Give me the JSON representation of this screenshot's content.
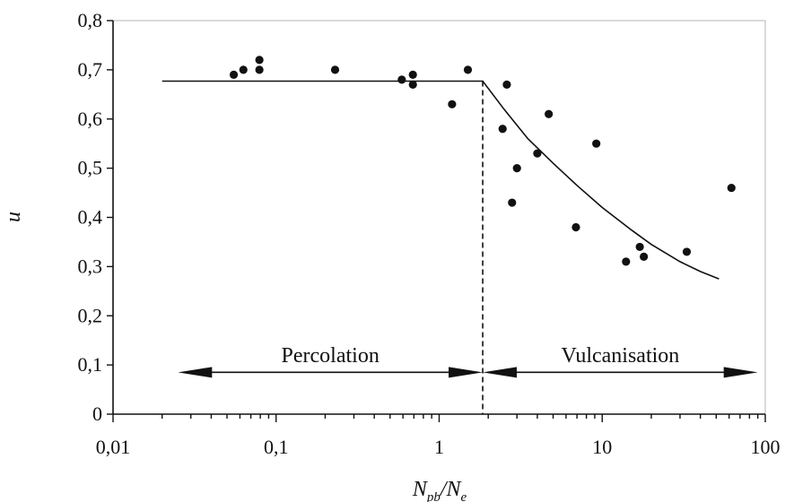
{
  "chart_data": {
    "type": "scatter",
    "title": "",
    "xlabel": "N",
    "xlabel_sub_1": "pb",
    "xlabel_sep": "/N",
    "xlabel_sub_2": "e",
    "ylabel": "u",
    "x_scale": "log",
    "xlim": [
      0.01,
      100
    ],
    "ylim": [
      0,
      0.8
    ],
    "x_ticks": [
      0.01,
      0.1,
      1,
      10,
      100
    ],
    "x_tick_labels": [
      "0,01",
      "0,1",
      "1",
      "10",
      "100"
    ],
    "y_ticks": [
      0,
      0.1,
      0.2,
      0.3,
      0.4,
      0.5,
      0.6,
      0.7,
      0.8
    ],
    "y_tick_labels": [
      "0",
      "0,1",
      "0,2",
      "0,3",
      "0,4",
      "0,5",
      "0,6",
      "0,7",
      "0,8"
    ],
    "grid": false,
    "legend": "none",
    "points": [
      {
        "x": 0.055,
        "y": 0.69
      },
      {
        "x": 0.063,
        "y": 0.7
      },
      {
        "x": 0.079,
        "y": 0.72
      },
      {
        "x": 0.079,
        "y": 0.7
      },
      {
        "x": 0.23,
        "y": 0.7
      },
      {
        "x": 0.59,
        "y": 0.68
      },
      {
        "x": 0.69,
        "y": 0.69
      },
      {
        "x": 0.69,
        "y": 0.67
      },
      {
        "x": 1.2,
        "y": 0.63
      },
      {
        "x": 1.5,
        "y": 0.7
      },
      {
        "x": 2.45,
        "y": 0.58
      },
      {
        "x": 2.6,
        "y": 0.67
      },
      {
        "x": 2.8,
        "y": 0.43
      },
      {
        "x": 3.0,
        "y": 0.5
      },
      {
        "x": 4.0,
        "y": 0.53
      },
      {
        "x": 4.7,
        "y": 0.61
      },
      {
        "x": 6.9,
        "y": 0.38
      },
      {
        "x": 9.2,
        "y": 0.55
      },
      {
        "x": 14.0,
        "y": 0.31
      },
      {
        "x": 17.0,
        "y": 0.34
      },
      {
        "x": 18.0,
        "y": 0.32
      },
      {
        "x": 33.0,
        "y": 0.33
      },
      {
        "x": 62.0,
        "y": 0.46
      }
    ],
    "fit_line": [
      {
        "x": 0.02,
        "y": 0.677
      },
      {
        "x": 1.85,
        "y": 0.677
      },
      {
        "x": 2.5,
        "y": 0.62
      },
      {
        "x": 3.5,
        "y": 0.56
      },
      {
        "x": 5.0,
        "y": 0.51
      },
      {
        "x": 7.0,
        "y": 0.465
      },
      {
        "x": 10.0,
        "y": 0.42
      },
      {
        "x": 15.0,
        "y": 0.375
      },
      {
        "x": 20.0,
        "y": 0.345
      },
      {
        "x": 30.0,
        "y": 0.31
      },
      {
        "x": 40.0,
        "y": 0.29
      },
      {
        "x": 52.0,
        "y": 0.275
      }
    ],
    "boundary_x": 1.85,
    "regions": [
      {
        "label": "Percolation",
        "x_from": 0.025,
        "x_to": 1.85,
        "y": 0.085,
        "label_y": 0.12
      },
      {
        "label": "Vulcanisation",
        "x_from": 1.85,
        "x_to": 90,
        "y": 0.085,
        "label_y": 0.12
      }
    ]
  }
}
